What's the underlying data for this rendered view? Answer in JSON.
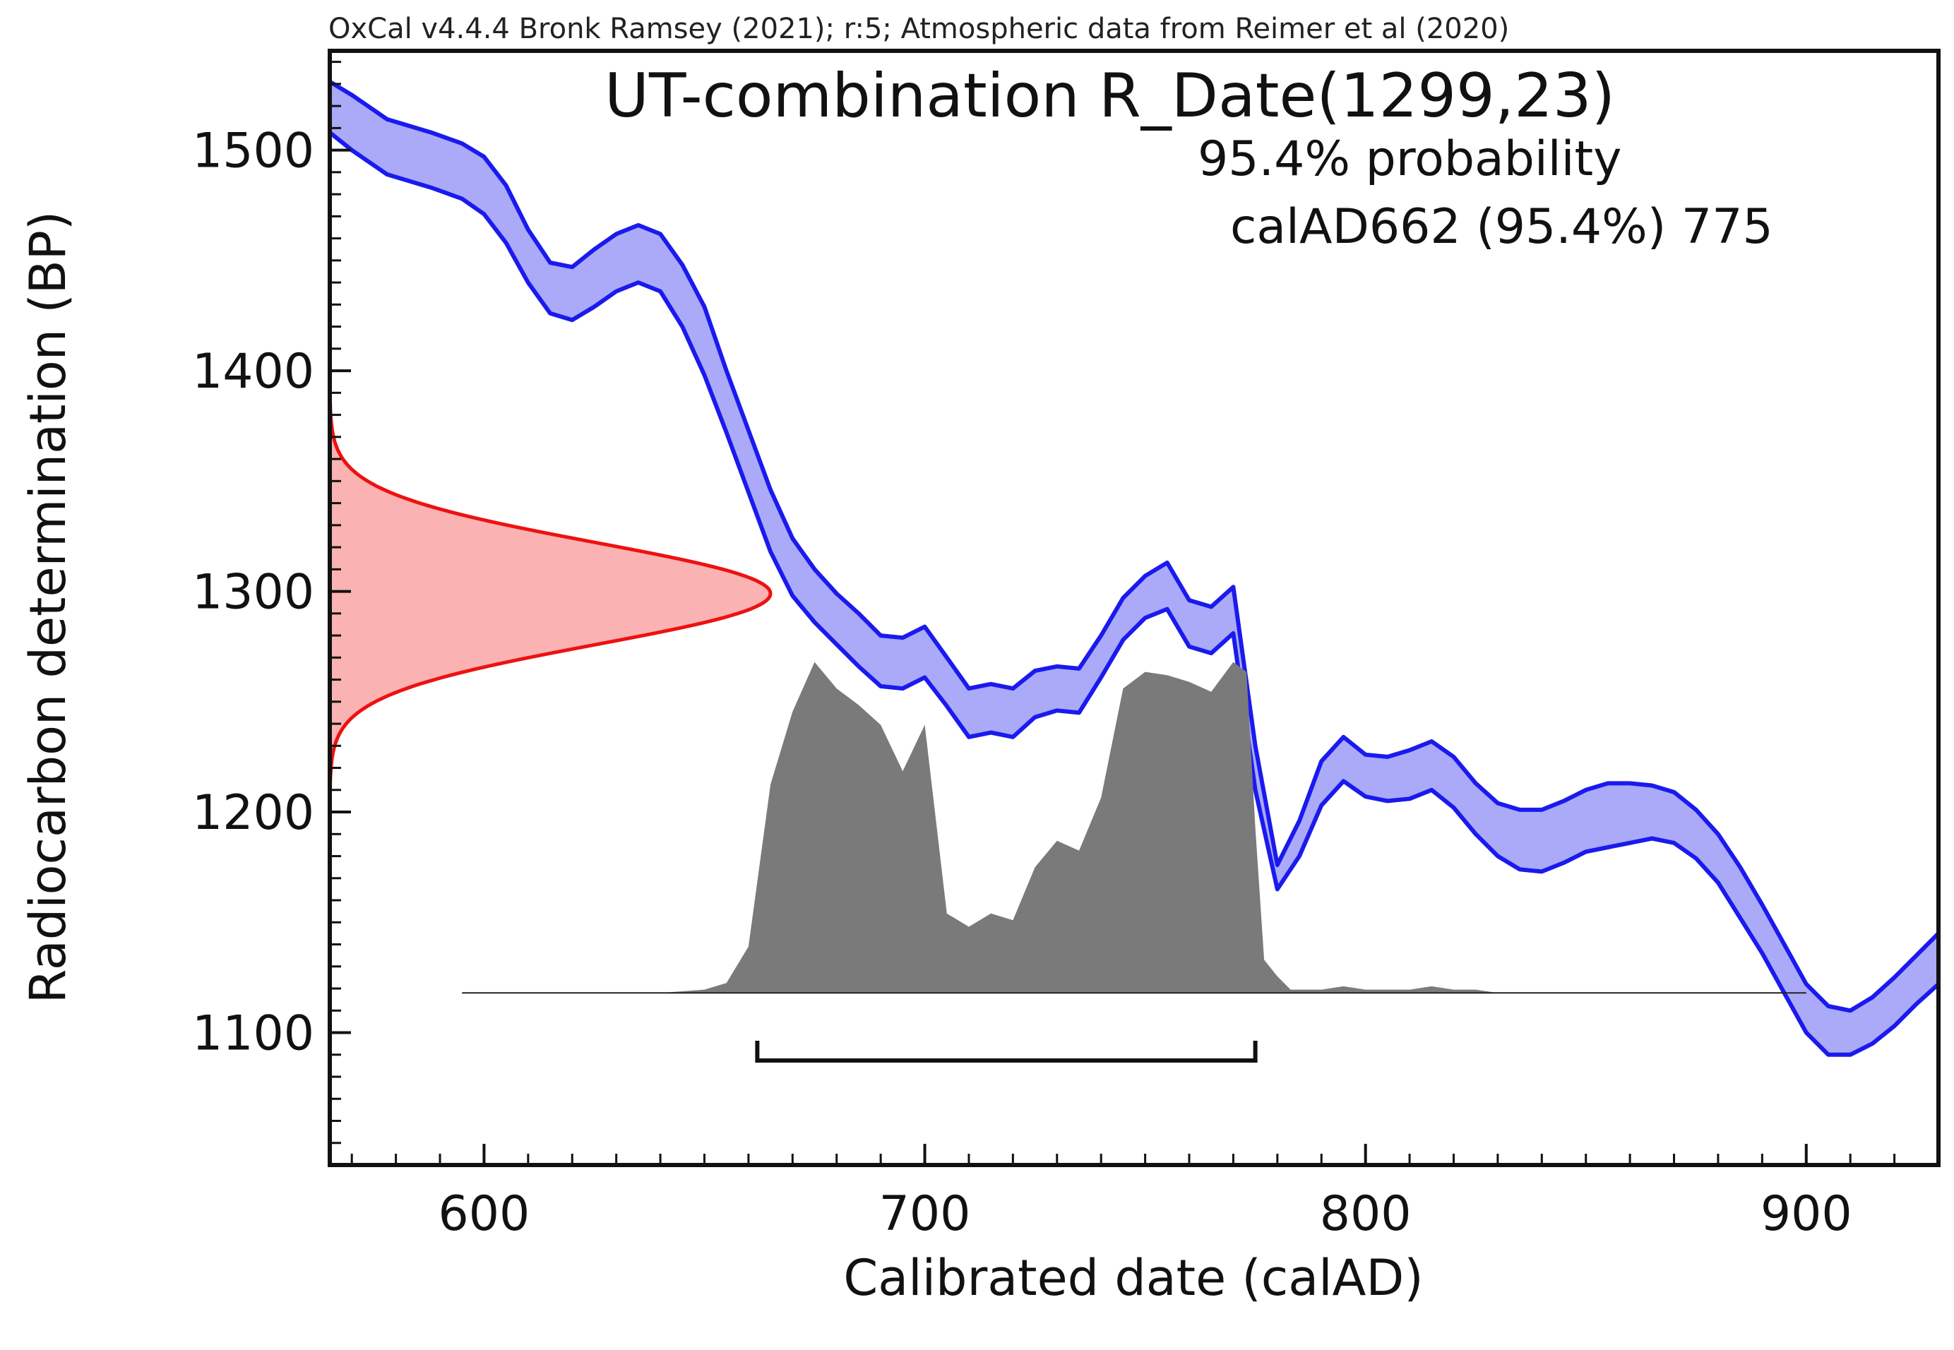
{
  "chart_data": {
    "type": "area",
    "credit": "OxCal v4.4.4 Bronk Ramsey (2021); r:5; Atmospheric data from Reimer et al (2020)",
    "title": "UT-combination R_Date(1299,23)",
    "probability_label": "95.4% probability",
    "range_label": "calAD662 (95.4%) 775",
    "xlabel": "Calibrated date (calAD)",
    "ylabel": "Radiocarbon determination (BP)",
    "xlim": [
      565,
      930
    ],
    "ylim": [
      1040,
      1545
    ],
    "x_ticks": [
      600,
      700,
      800,
      900
    ],
    "y_ticks": [
      1100,
      1200,
      1300,
      1400,
      1500
    ],
    "x_minor_step": 10,
    "y_minor_step": 10,
    "colors": {
      "curve_line": "#1a1aee",
      "curve_fill": "#aaaaf8",
      "measurement_line": "#ee1111",
      "measurement_fill": "#fab2b2",
      "posterior_fill": "#7a7a7a",
      "axis": "#111111"
    },
    "calibration_curve": {
      "name": "IntCal20",
      "x": [
        565,
        570,
        578,
        588,
        595,
        600,
        605,
        610,
        615,
        620,
        625,
        630,
        635,
        640,
        645,
        650,
        655,
        660,
        665,
        670,
        675,
        680,
        685,
        690,
        695,
        700,
        705,
        710,
        715,
        720,
        725,
        730,
        735,
        740,
        745,
        750,
        755,
        760,
        765,
        770,
        775,
        780,
        785,
        790,
        795,
        800,
        805,
        810,
        815,
        820,
        825,
        830,
        835,
        840,
        845,
        850,
        855,
        860,
        865,
        870,
        875,
        880,
        885,
        890,
        895,
        900,
        905,
        910,
        915,
        920,
        925,
        930
      ],
      "upper": [
        1531,
        1525,
        1514,
        1508,
        1503,
        1497,
        1484,
        1464,
        1449,
        1447,
        1455,
        1462,
        1466,
        1462,
        1448,
        1429,
        1400,
        1373,
        1346,
        1324,
        1310,
        1299,
        1290,
        1280,
        1279,
        1284,
        1270,
        1256,
        1258,
        1256,
        1264,
        1266,
        1265,
        1280,
        1297,
        1307,
        1313,
        1296,
        1293,
        1302,
        1230,
        1176,
        1196,
        1223,
        1234,
        1226,
        1225,
        1228,
        1232,
        1225,
        1213,
        1204,
        1201,
        1201,
        1205,
        1210,
        1213,
        1213,
        1212,
        1209,
        1201,
        1190,
        1175,
        1158,
        1140,
        1122,
        1112,
        1110,
        1116,
        1125,
        1135,
        1145
      ],
      "lower": [
        1508,
        1500,
        1489,
        1483,
        1478,
        1471,
        1458,
        1440,
        1426,
        1423,
        1429,
        1436,
        1440,
        1436,
        1420,
        1398,
        1372,
        1345,
        1318,
        1298,
        1286,
        1276,
        1266,
        1257,
        1256,
        1261,
        1248,
        1234,
        1236,
        1234,
        1243,
        1246,
        1245,
        1261,
        1278,
        1288,
        1292,
        1275,
        1272,
        1281,
        1210,
        1165,
        1180,
        1203,
        1214,
        1207,
        1205,
        1206,
        1210,
        1202,
        1190,
        1180,
        1174,
        1173,
        1177,
        1182,
        1184,
        1186,
        1188,
        1186,
        1179,
        1168,
        1152,
        1136,
        1118,
        1100,
        1090,
        1090,
        1095,
        1103,
        1113,
        1122
      ]
    },
    "measurement": {
      "mean": 1299,
      "sigma": 23
    },
    "posterior": {
      "baseline_bp": 1118,
      "xlim": [
        595,
        900
      ],
      "x": [
        595,
        640,
        650,
        655,
        660,
        665,
        670,
        675,
        680,
        685,
        690,
        695,
        700,
        705,
        710,
        715,
        720,
        725,
        730,
        735,
        740,
        745,
        750,
        755,
        760,
        765,
        770,
        773,
        775,
        777,
        780,
        783,
        790,
        795,
        800,
        805,
        810,
        815,
        820,
        825,
        830,
        840,
        880,
        900
      ],
      "density": [
        0,
        0,
        0.01,
        0.03,
        0.14,
        0.63,
        0.85,
        1.0,
        0.92,
        0.87,
        0.81,
        0.67,
        0.81,
        0.24,
        0.2,
        0.24,
        0.22,
        0.38,
        0.46,
        0.43,
        0.59,
        0.92,
        0.97,
        0.96,
        0.94,
        0.91,
        1.0,
        0.97,
        0.5,
        0.1,
        0.05,
        0.01,
        0.01,
        0.02,
        0.01,
        0.01,
        0.01,
        0.02,
        0.01,
        0.01,
        0,
        0,
        0,
        0
      ],
      "hpd_95_4": {
        "from": 662,
        "to": 775
      }
    }
  }
}
